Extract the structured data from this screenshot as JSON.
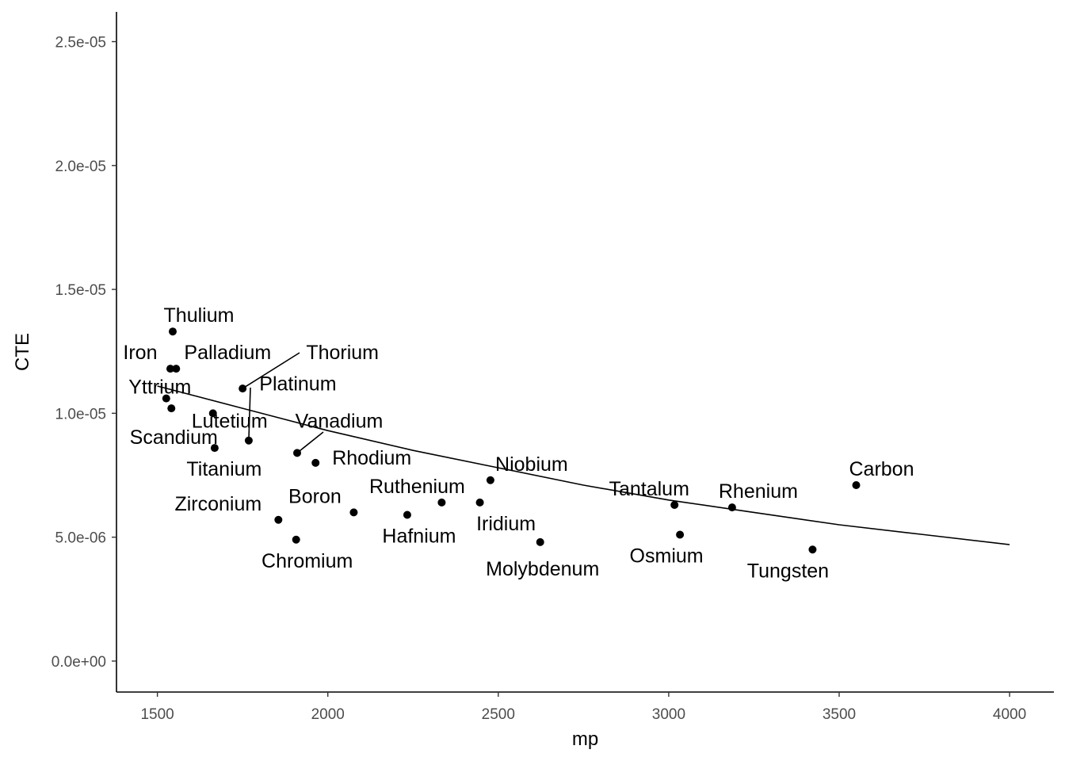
{
  "chart_data": {
    "type": "scatter",
    "xlabel": "mp",
    "ylabel": "CTE",
    "xlim": [
      1380,
      4130
    ],
    "ylim": [
      -1.25e-06,
      2.62e-05
    ],
    "x_ticks": [
      1500,
      2000,
      2500,
      3000,
      3500,
      4000
    ],
    "x_tick_labels": [
      "1500",
      "2000",
      "2500",
      "3000",
      "3500",
      "4000"
    ],
    "y_ticks": [
      0,
      5e-06,
      1e-05,
      1.5e-05,
      2e-05,
      2.5e-05
    ],
    "y_tick_labels": [
      "0.0e+00",
      "5.0e-06",
      "1.0e-05",
      "1.5e-05",
      "2.0e-05",
      "2.5e-05"
    ],
    "grid": false,
    "legend": "none",
    "points": [
      {
        "name": "Thulium",
        "x": 1545,
        "y": 1.33e-05
      },
      {
        "name": "Iron",
        "x": 1538,
        "y": 1.18e-05
      },
      {
        "name": "Palladium",
        "x": 1555,
        "y": 1.18e-05
      },
      {
        "name": "Thorium",
        "x": 1750,
        "y": 1.1e-05
      },
      {
        "name": "Platinum",
        "x": 1768,
        "y": 8.9e-06
      },
      {
        "name": "Yttrium",
        "x": 1526,
        "y": 1.06e-05
      },
      {
        "name": "Lutetium",
        "x": 1663,
        "y": 1e-05
      },
      {
        "name": "Scandium",
        "x": 1541,
        "y": 1.02e-05
      },
      {
        "name": "Titanium",
        "x": 1668,
        "y": 8.6e-06
      },
      {
        "name": "Vanadium",
        "x": 1910,
        "y": 8.4e-06
      },
      {
        "name": "Rhodium",
        "x": 1964,
        "y": 8e-06
      },
      {
        "name": "Zirconium",
        "x": 1855,
        "y": 5.7e-06
      },
      {
        "name": "Chromium",
        "x": 1907,
        "y": 4.9e-06
      },
      {
        "name": "Boron",
        "x": 2076,
        "y": 6e-06
      },
      {
        "name": "Hafnium",
        "x": 2233,
        "y": 5.9e-06
      },
      {
        "name": "Ruthenium",
        "x": 2334,
        "y": 6.4e-06
      },
      {
        "name": "Iridium",
        "x": 2446,
        "y": 6.4e-06
      },
      {
        "name": "Niobium",
        "x": 2477,
        "y": 7.3e-06
      },
      {
        "name": "Molybdenum",
        "x": 2623,
        "y": 4.8e-06
      },
      {
        "name": "Tantalum",
        "x": 3017,
        "y": 6.3e-06
      },
      {
        "name": "Osmium",
        "x": 3033,
        "y": 5.1e-06
      },
      {
        "name": "Rhenium",
        "x": 3186,
        "y": 6.2e-06
      },
      {
        "name": "Tungsten",
        "x": 3422,
        "y": 4.5e-06
      },
      {
        "name": "Carbon",
        "x": 3550,
        "y": 7.1e-06
      }
    ],
    "fit_line": {
      "x": [
        1500,
        1750,
        2000,
        2250,
        2500,
        2750,
        3000,
        3250,
        3500,
        3750,
        4000
      ],
      "y": [
        1.11e-05,
        1.02e-05,
        9.3e-06,
        8.5e-06,
        7.8e-06,
        7.1e-06,
        6.5e-06,
        6e-06,
        5.5e-06,
        5.1e-06,
        4.7e-06
      ]
    }
  }
}
